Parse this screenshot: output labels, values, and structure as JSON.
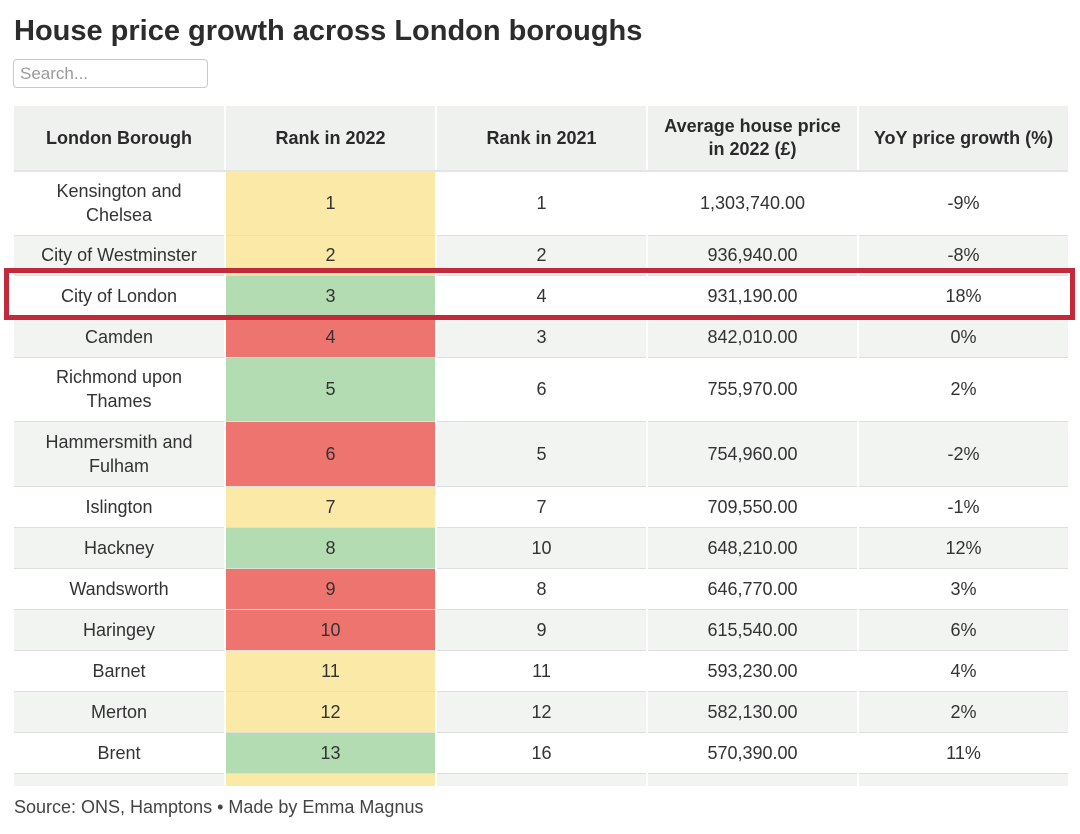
{
  "title": "House price growth across London boroughs",
  "search": {
    "placeholder": "Search..."
  },
  "table": {
    "headers": [
      "London Borough",
      "Rank in 2022",
      "Rank in 2021",
      "Average house price in 2022 (£)",
      "YoY price growth (%)"
    ],
    "rows": [
      {
        "borough": "Kensington and Chelsea",
        "rank2022": "1",
        "rank2021": "1",
        "price": "1,303,740.00",
        "growth": "-9%",
        "rank_color": "yellow"
      },
      {
        "borough": "City of Westminster",
        "rank2022": "2",
        "rank2021": "2",
        "price": "936,940.00",
        "growth": "-8%",
        "rank_color": "yellow"
      },
      {
        "borough": "City of London",
        "rank2022": "3",
        "rank2021": "4",
        "price": "931,190.00",
        "growth": "18%",
        "rank_color": "green",
        "highlighted": true
      },
      {
        "borough": "Camden",
        "rank2022": "4",
        "rank2021": "3",
        "price": "842,010.00",
        "growth": "0%",
        "rank_color": "red"
      },
      {
        "borough": "Richmond upon Thames",
        "rank2022": "5",
        "rank2021": "6",
        "price": "755,970.00",
        "growth": "2%",
        "rank_color": "green"
      },
      {
        "borough": "Hammersmith and Fulham",
        "rank2022": "6",
        "rank2021": "5",
        "price": "754,960.00",
        "growth": "-2%",
        "rank_color": "red"
      },
      {
        "borough": "Islington",
        "rank2022": "7",
        "rank2021": "7",
        "price": "709,550.00",
        "growth": "-1%",
        "rank_color": "yellow"
      },
      {
        "borough": "Hackney",
        "rank2022": "8",
        "rank2021": "10",
        "price": "648,210.00",
        "growth": "12%",
        "rank_color": "green"
      },
      {
        "borough": "Wandsworth",
        "rank2022": "9",
        "rank2021": "8",
        "price": "646,770.00",
        "growth": "3%",
        "rank_color": "red"
      },
      {
        "borough": "Haringey",
        "rank2022": "10",
        "rank2021": "9",
        "price": "615,540.00",
        "growth": "6%",
        "rank_color": "red"
      },
      {
        "borough": "Barnet",
        "rank2022": "11",
        "rank2021": "11",
        "price": "593,230.00",
        "growth": "4%",
        "rank_color": "yellow"
      },
      {
        "borough": "Merton",
        "rank2022": "12",
        "rank2021": "12",
        "price": "582,130.00",
        "growth": "2%",
        "rank_color": "yellow"
      },
      {
        "borough": "Brent",
        "rank2022": "13",
        "rank2021": "16",
        "price": "570,390.00",
        "growth": "11%",
        "rank_color": "green"
      }
    ]
  },
  "colors": {
    "green": "#b3dcb3",
    "red": "#ee7470",
    "yellow": "#fbe9a7",
    "highlight_border": "#c2293b"
  },
  "footer": "Source: ONS, Hamptons • Made by Emma Magnus"
}
